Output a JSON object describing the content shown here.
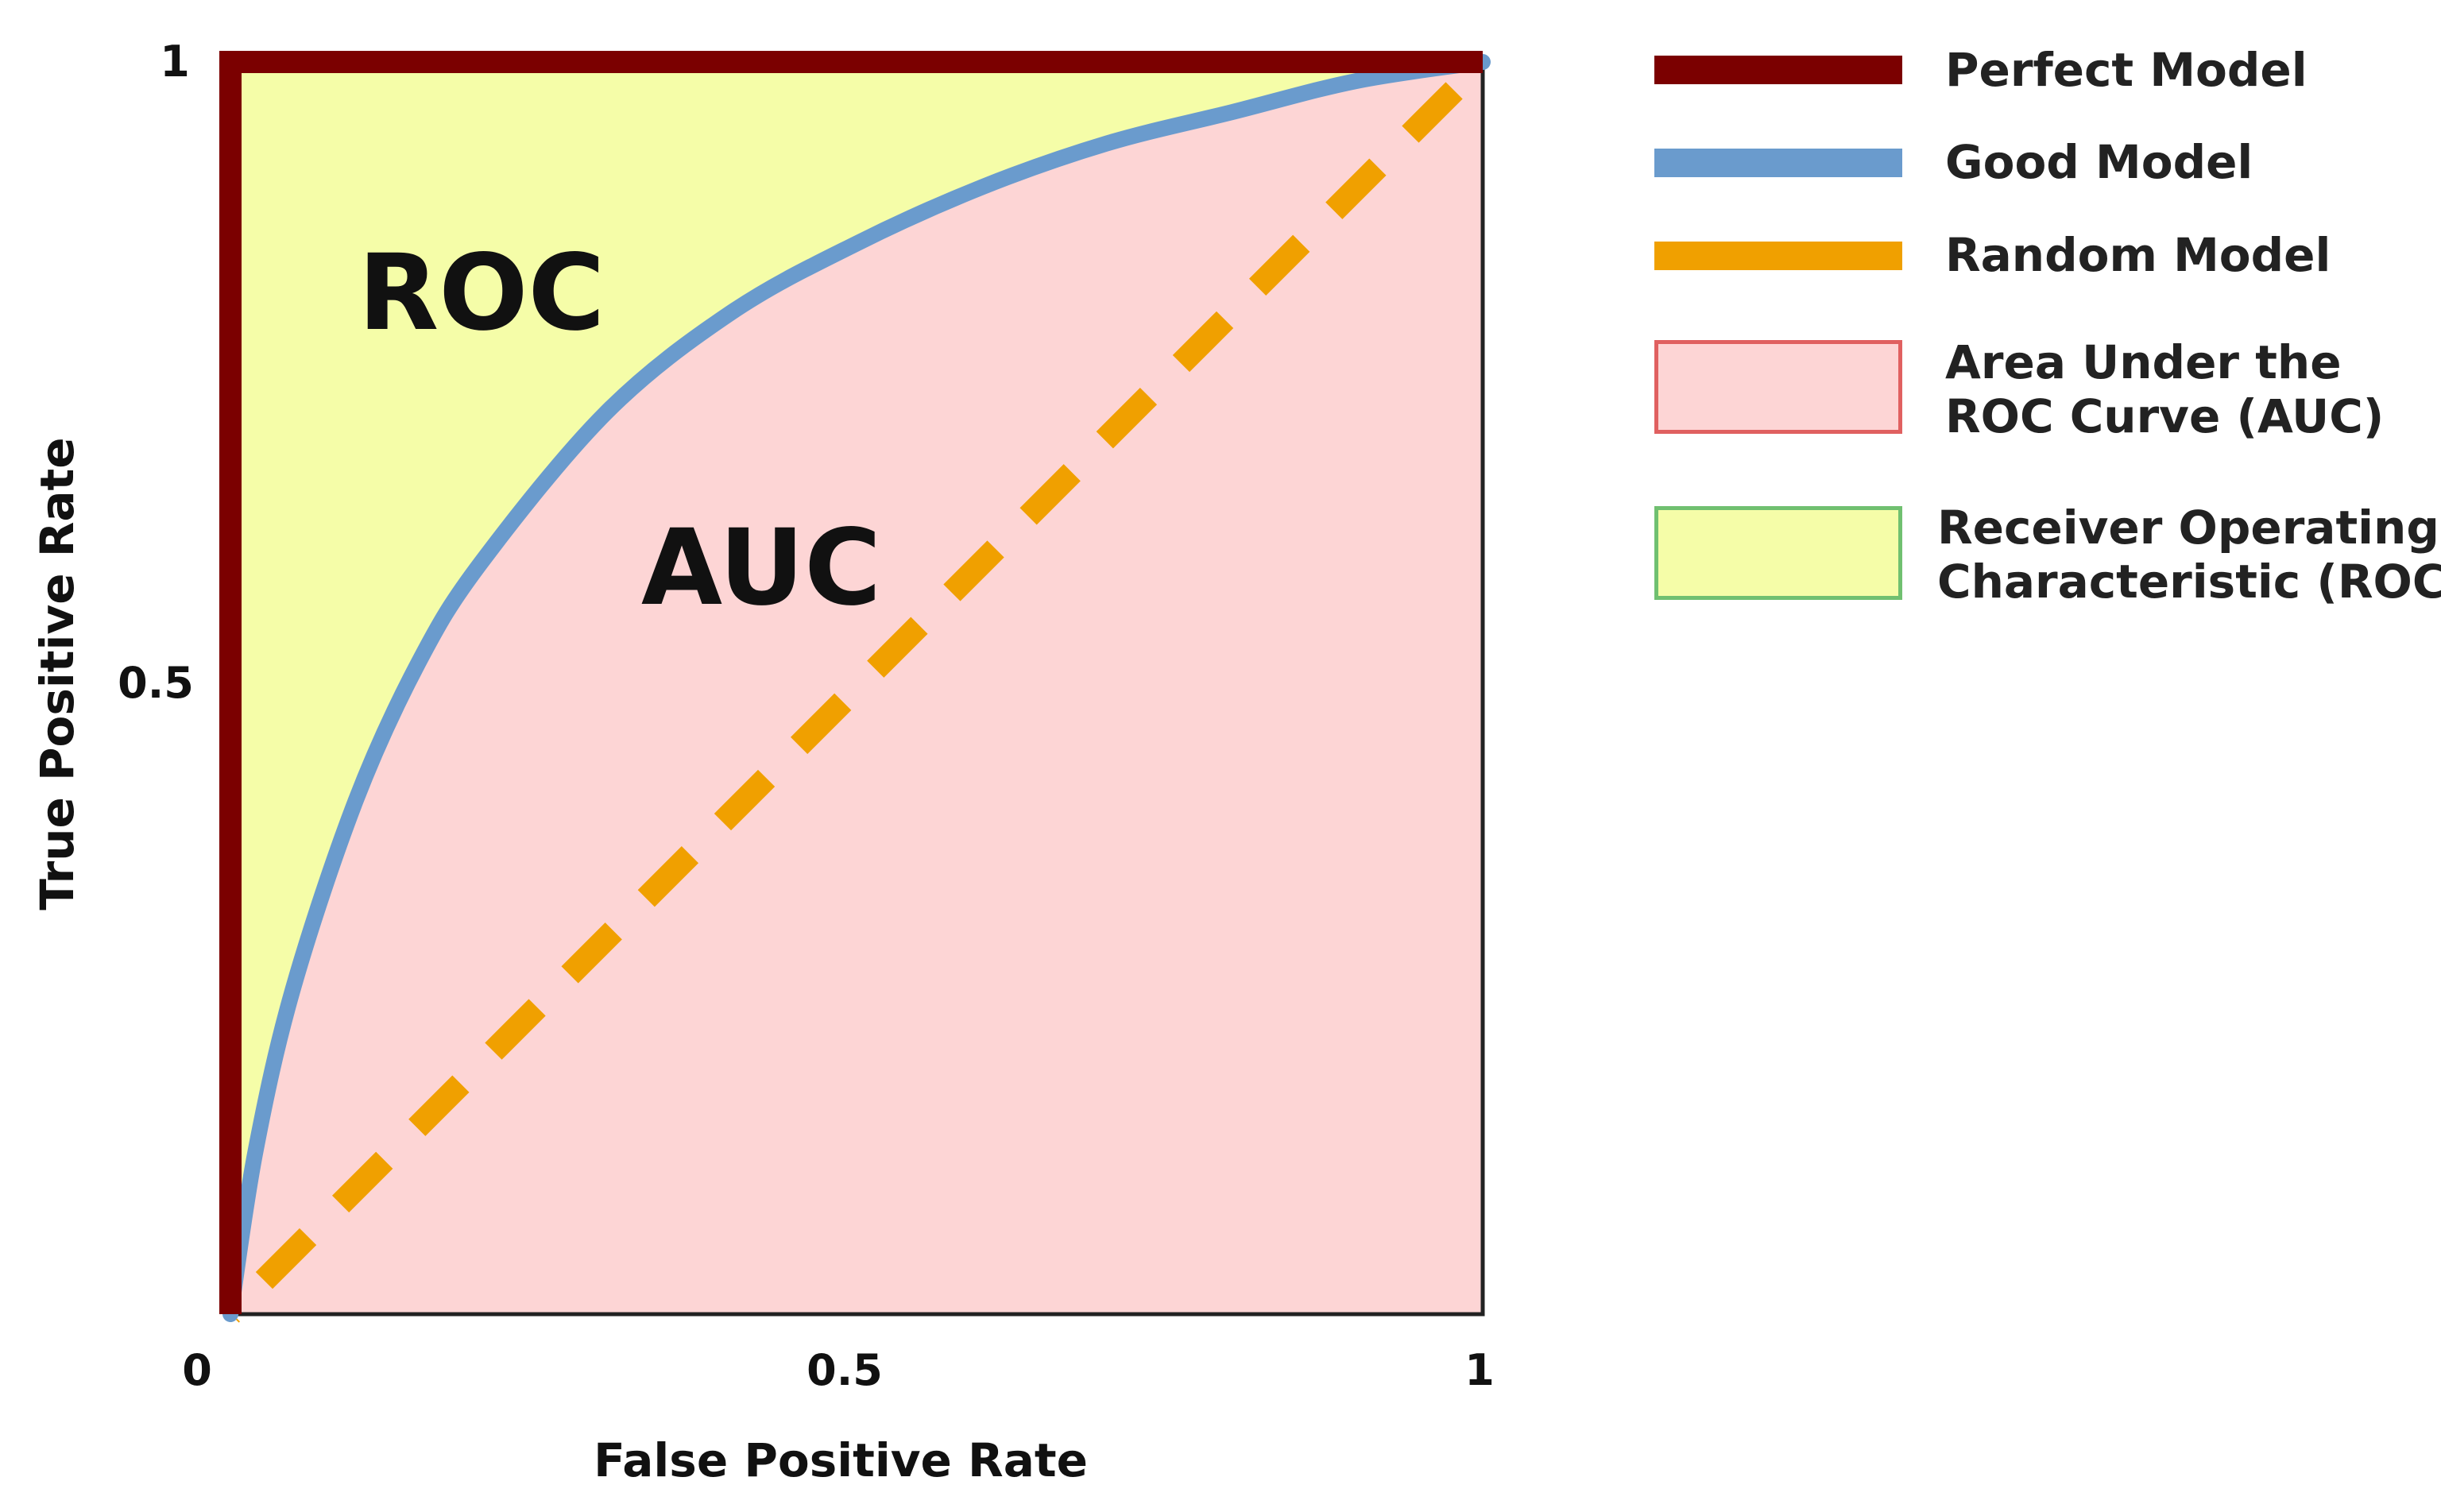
{
  "chart_data": {
    "type": "line",
    "xlabel": "False Positive Rate",
    "ylabel": "True Positive Rate",
    "xlim": [
      0,
      1
    ],
    "ylim": [
      0,
      1
    ],
    "x_ticks": [
      "0",
      "0.5",
      "1"
    ],
    "y_ticks": [
      "0.5",
      "1"
    ],
    "grid": false,
    "legend_position": "right",
    "series": [
      {
        "name": "Perfect Model",
        "style": "solid",
        "color": "#7b0000",
        "x": [
          0,
          0,
          1
        ],
        "y": [
          0,
          1,
          1
        ]
      },
      {
        "name": "Good Model",
        "style": "solid",
        "color": "#6a9bcd",
        "x": [
          0,
          0.02,
          0.05,
          0.1,
          0.15,
          0.2,
          0.3,
          0.4,
          0.5,
          0.6,
          0.7,
          0.8,
          0.9,
          1.0
        ],
        "y": [
          0,
          0.13,
          0.26,
          0.41,
          0.52,
          0.6,
          0.72,
          0.8,
          0.855,
          0.9,
          0.935,
          0.96,
          0.985,
          1.0
        ]
      },
      {
        "name": "Random Model",
        "style": "dashed",
        "color": "#f0a000",
        "x": [
          0,
          1
        ],
        "y": [
          0,
          1
        ]
      }
    ],
    "areas": [
      {
        "name": "Area Under the ROC Curve (AUC)",
        "fill": "#fdd5d5",
        "border": "#e06060"
      },
      {
        "name": "Receiver Operating Characteristic (ROC)",
        "fill": "#f5fda8",
        "border": "#70c070"
      }
    ],
    "annotations": [
      {
        "text": "ROC",
        "x": 0.2,
        "y": 0.82
      },
      {
        "text": "AUC",
        "x": 0.42,
        "y": 0.6
      }
    ]
  },
  "legend": {
    "items": [
      {
        "label": "Perfect Model",
        "swatch": "line",
        "color": "#7b0000"
      },
      {
        "label": "Good Model",
        "swatch": "line",
        "color": "#6a9bcd"
      },
      {
        "label": "Random Model",
        "swatch": "line",
        "color": "#f0a000"
      },
      {
        "label_lines": [
          "Area Under the",
          "ROC Curve (AUC)"
        ],
        "swatch": "box",
        "fill": "#fdd5d5",
        "border": "#e06060"
      },
      {
        "label_lines": [
          "Receiver  Operating",
          "Characteristic (ROC)"
        ],
        "swatch": "box",
        "fill": "#f5fda8",
        "border": "#70c070"
      }
    ]
  }
}
